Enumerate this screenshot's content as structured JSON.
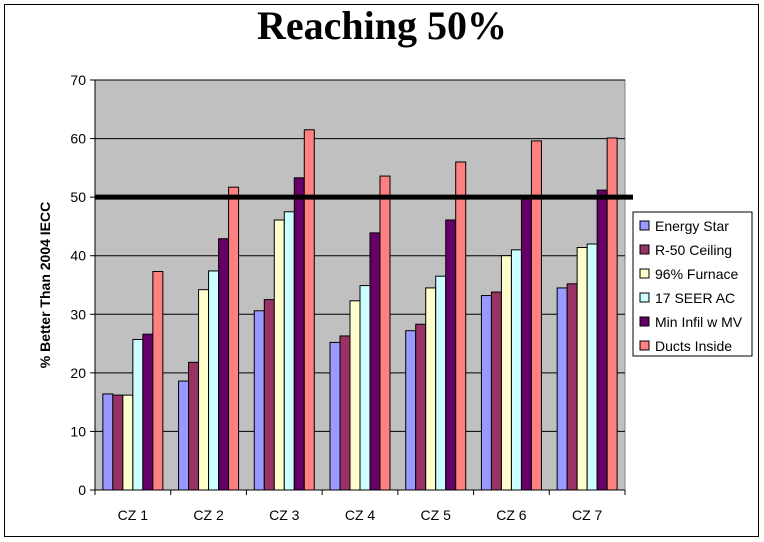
{
  "chart_data": {
    "type": "bar",
    "title": "Reaching 50%",
    "xlabel": "",
    "ylabel": "% Better Than 2004 IECC",
    "ylim": [
      0,
      70
    ],
    "yticks": [
      0,
      10,
      20,
      30,
      40,
      50,
      60,
      70
    ],
    "grid": true,
    "legend_position": "right",
    "categories": [
      "CZ 1",
      "CZ 2",
      "CZ 3",
      "CZ 4",
      "CZ 5",
      "CZ 6",
      "CZ 7"
    ],
    "reference_line": 50,
    "series": [
      {
        "name": "Energy Star",
        "color": "#9999FF",
        "values": [
          16.4,
          18.6,
          30.6,
          25.2,
          27.2,
          33.2,
          34.5
        ]
      },
      {
        "name": "R-50 Ceiling",
        "color": "#993366",
        "values": [
          16.2,
          21.8,
          32.5,
          26.3,
          28.3,
          33.8,
          35.2
        ]
      },
      {
        "name": "96% Furnace",
        "color": "#FFFFCC",
        "values": [
          16.2,
          34.2,
          46.1,
          32.3,
          34.5,
          40.0,
          41.4
        ]
      },
      {
        "name": "17 SEER AC",
        "color": "#CCFFFF",
        "values": [
          25.7,
          37.4,
          47.5,
          34.9,
          36.5,
          41.0,
          42.0
        ]
      },
      {
        "name": "Min Infil w MV",
        "color": "#660066",
        "values": [
          26.6,
          42.9,
          53.3,
          43.9,
          46.1,
          50.2,
          51.2
        ]
      },
      {
        "name": "Ducts Inside",
        "color": "#FF8080",
        "values": [
          37.3,
          51.7,
          61.5,
          53.6,
          56.0,
          59.6,
          60.1
        ]
      }
    ],
    "plot_background": "#C0C0C0"
  }
}
